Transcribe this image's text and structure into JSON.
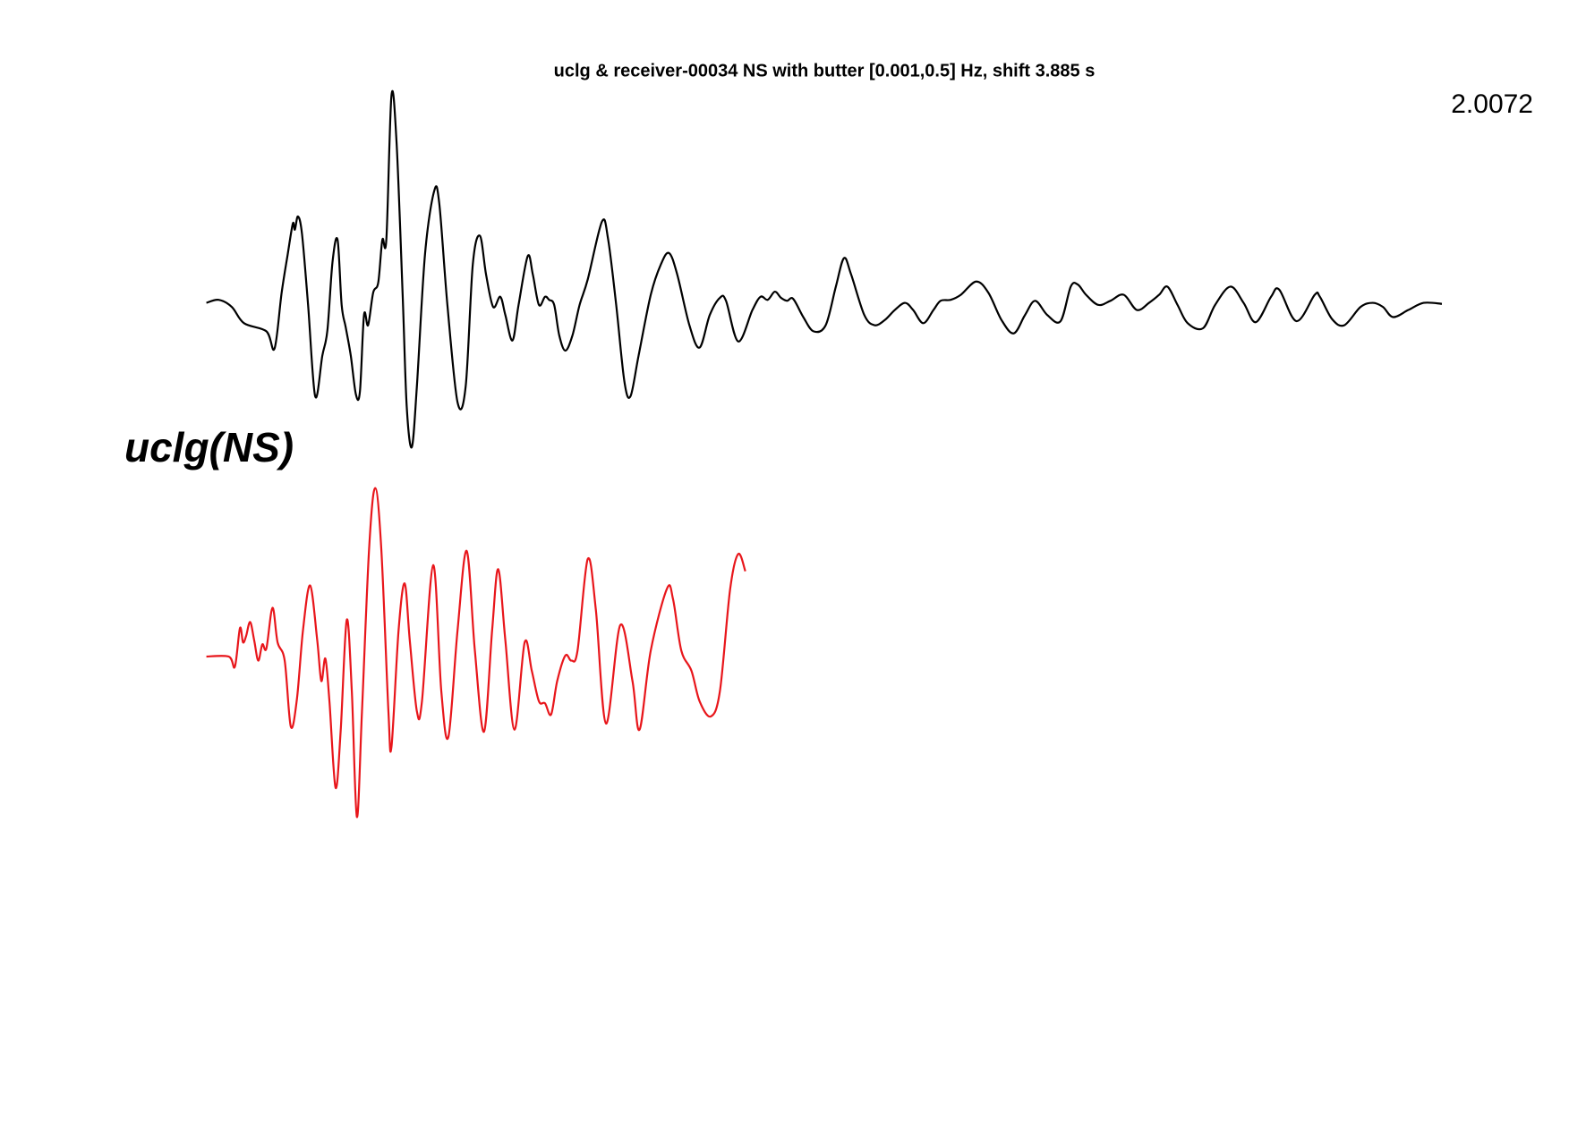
{
  "chart_data": {
    "type": "line",
    "title": "uclg & receiver-00034 NS with butter [0.001,0.5] Hz, shift 3.885 s",
    "annotation": "2.0072",
    "station_label": "uclg(NS)",
    "xlim": [
      0,
      121.5
    ],
    "series": [
      {
        "color": "#000000",
        "ylim": [
          -1.5,
          2.1
        ],
        "x": [
          0,
          1.2,
          2.5,
          3.7,
          5.9,
          6.7,
          7.4,
          8,
          8.5,
          8.7,
          9,
          9.4,
          10,
          10.7,
          11.4,
          11.9,
          12.4,
          12.9,
          13.3,
          13.7,
          14.2,
          14.7,
          15.1,
          15.5,
          15.9,
          16.4,
          16.9,
          17.3,
          17.7,
          18.2,
          18.7,
          19.3,
          19.7,
          20.2,
          20.7,
          21.5,
          22.4,
          22.9,
          23.7,
          24.7,
          25.5,
          26.2,
          26.9,
          27.5,
          28.2,
          28.9,
          29.4,
          30.1,
          30.7,
          31.6,
          32.1,
          32.7,
          33.3,
          33.7,
          34.2,
          34.7,
          35.3,
          36,
          36.7,
          37.5,
          38.9,
          39.5,
          40.3,
          41.1,
          41.7,
          42.5,
          43.7,
          44.7,
          45.5,
          46.3,
          47.5,
          48.5,
          49.5,
          50.5,
          51.1,
          52.3,
          53.7,
          54.5,
          55.2,
          55.9,
          56.5,
          57.1,
          57.7,
          58.7,
          59.7,
          60.9,
          61.9,
          62.7,
          63.4,
          64.7,
          65.7,
          66.7,
          67.7,
          68.7,
          69.5,
          70.5,
          71.5,
          72.2,
          73.2,
          74.2,
          75.7,
          76.9,
          78.2,
          79.4,
          80.5,
          81.5,
          82.7,
          84,
          85,
          85.7,
          86.5,
          87.7,
          88.9,
          90.2,
          91.5,
          92.7,
          93.7,
          94.5,
          95.5,
          96.5,
          98,
          99.2,
          100.7,
          102,
          103.2,
          104.7,
          105.5,
          107.2,
          109,
          109.5,
          110.7,
          111.9,
          113.5,
          114.7,
          115.7,
          116.7,
          118.2,
          119.7,
          121.5
        ],
        "values": [
          0,
          0.03,
          -0.04,
          -0.2,
          -0.28,
          -0.45,
          0.1,
          0.48,
          0.78,
          0.72,
          0.85,
          0.68,
          -0.02,
          -0.92,
          -0.52,
          -0.27,
          0.4,
          0.62,
          -0.02,
          -0.24,
          -0.52,
          -0.9,
          -0.87,
          -0.12,
          -0.22,
          0.1,
          0.2,
          0.62,
          0.63,
          2.04,
          1.58,
          0.08,
          -1.02,
          -1.42,
          -0.82,
          0.48,
          1.1,
          0.98,
          -0.02,
          -0.98,
          -0.82,
          0.38,
          0.66,
          0.28,
          -0.04,
          0.06,
          -0.12,
          -0.37,
          -0.02,
          0.46,
          0.28,
          -0.02,
          0.06,
          0.03,
          -0.02,
          -0.32,
          -0.47,
          -0.32,
          -0.02,
          0.23,
          0.8,
          0.63,
          -0.02,
          -0.77,
          -0.92,
          -0.52,
          0.08,
          0.38,
          0.49,
          0.28,
          -0.22,
          -0.44,
          -0.12,
          0.05,
          0.02,
          -0.38,
          -0.07,
          0.06,
          0.03,
          0.11,
          0.05,
          0.02,
          0.04,
          -0.14,
          -0.28,
          -0.22,
          0.16,
          0.44,
          0.28,
          -0.12,
          -0.22,
          -0.17,
          -0.07,
          0,
          -0.07,
          -0.2,
          -0.07,
          0.02,
          0.03,
          0.08,
          0.21,
          0.1,
          -0.17,
          -0.3,
          -0.12,
          0.02,
          -0.12,
          -0.18,
          0.16,
          0.18,
          0.08,
          -0.02,
          0.02,
          0.08,
          -0.07,
          0,
          0.08,
          0.16,
          -0.02,
          -0.2,
          -0.25,
          -0.02,
          0.16,
          0,
          -0.19,
          0.06,
          0.13,
          -0.18,
          0.08,
          0.06,
          -0.16,
          -0.22,
          -0.04,
          0,
          -0.04,
          -0.14,
          -0.07,
          0,
          -0.01
        ]
      },
      {
        "color": "#e8161b",
        "ylim": [
          -1.7,
          1.7
        ],
        "x": [
          0,
          2.2,
          2.8,
          3.3,
          3.6,
          3.9,
          4.3,
          4.7,
          5.1,
          5.5,
          5.9,
          6.5,
          7,
          7.7,
          8.3,
          8.9,
          9.5,
          10.2,
          10.9,
          11.3,
          11.7,
          12.1,
          12.7,
          13.2,
          13.8,
          14.3,
          14.8,
          15.3,
          16,
          16.6,
          17.2,
          17.9,
          18.2,
          18.9,
          19.5,
          20,
          20.7,
          21.2,
          22.3,
          23.1,
          23.8,
          24.7,
          25.6,
          26.4,
          27.3,
          28.1,
          28.7,
          29.4,
          30.3,
          31.3,
          32,
          32.7,
          33.3,
          33.9,
          34.5,
          35.3,
          35.9,
          36.5,
          37.5,
          38.3,
          39.3,
          40.7,
          41.9,
          42.6,
          43.7,
          45.3,
          45.9,
          46.7,
          47.7,
          48.5,
          49.6,
          50.5,
          51.5,
          52.3,
          53
        ],
        "values": [
          0,
          0,
          -0.1,
          0.28,
          0.14,
          0.2,
          0.34,
          0.16,
          -0.04,
          0.12,
          0.08,
          0.48,
          0.14,
          -0.04,
          -0.69,
          -0.42,
          0.26,
          0.7,
          0.16,
          -0.24,
          -0.02,
          -0.44,
          -1.29,
          -0.74,
          0.36,
          -0.34,
          -1.58,
          -0.54,
          1.06,
          1.66,
          1.06,
          -0.54,
          -0.89,
          0.26,
          0.72,
          0.16,
          -0.54,
          -0.44,
          0.9,
          -0.34,
          -0.79,
          0.26,
          1.04,
          0.06,
          -0.74,
          0.26,
          0.86,
          0.16,
          -0.72,
          0.14,
          -0.14,
          -0.44,
          -0.46,
          -0.57,
          -0.24,
          0.01,
          -0.04,
          0.06,
          0.96,
          0.46,
          -0.66,
          0.31,
          -0.24,
          -0.72,
          0.06,
          0.67,
          0.56,
          0.06,
          -0.14,
          -0.44,
          -0.59,
          -0.34,
          0.66,
          1.01,
          0.84
        ]
      }
    ]
  }
}
